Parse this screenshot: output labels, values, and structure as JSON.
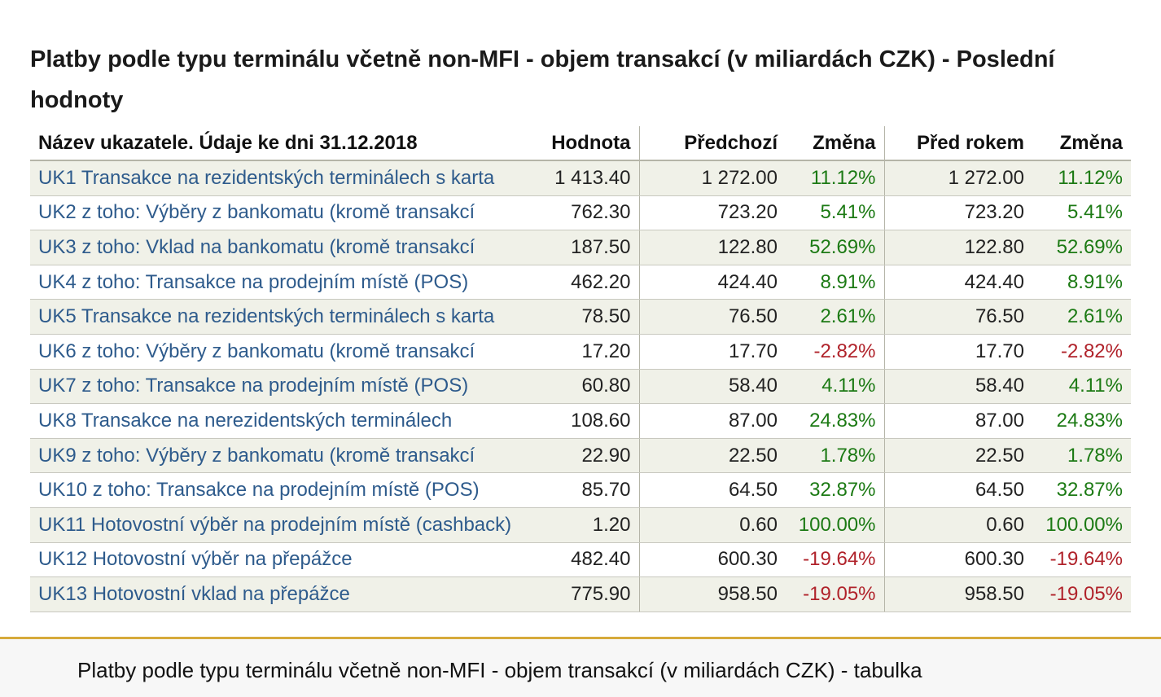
{
  "title": "Platby podle typu terminálu včetně non-MFI - objem transakcí (v miliardách CZK) - Poslední hodnoty",
  "table": {
    "headers": {
      "name": "Název ukazatele. Údaje ke dni 31.12.2018",
      "value": "Hodnota",
      "previous": "Předchozí",
      "change1": "Změna",
      "year_ago": "Před rokem",
      "change2": "Změna"
    },
    "rows": [
      {
        "name": "UK1 Transakce na rezidentských terminálech s karta",
        "value": "1 413.40",
        "previous": "1 272.00",
        "change1": "11.12%",
        "year_ago": "1 272.00",
        "change2": "11.12%"
      },
      {
        "name": "UK2 z toho: Výběry z bankomatu (kromě transakcí",
        "value": "762.30",
        "previous": "723.20",
        "change1": "5.41%",
        "year_ago": "723.20",
        "change2": "5.41%"
      },
      {
        "name": "UK3 z toho: Vklad na bankomatu (kromě transakcí",
        "value": "187.50",
        "previous": "122.80",
        "change1": "52.69%",
        "year_ago": "122.80",
        "change2": "52.69%"
      },
      {
        "name": "UK4 z toho: Transakce na prodejním místě (POS)",
        "value": "462.20",
        "previous": "424.40",
        "change1": "8.91%",
        "year_ago": "424.40",
        "change2": "8.91%"
      },
      {
        "name": "UK5 Transakce na rezidentských terminálech s karta",
        "value": "78.50",
        "previous": "76.50",
        "change1": "2.61%",
        "year_ago": "76.50",
        "change2": "2.61%"
      },
      {
        "name": "UK6 z toho: Výběry z bankomatu (kromě transakcí",
        "value": "17.20",
        "previous": "17.70",
        "change1": "-2.82%",
        "year_ago": "17.70",
        "change2": "-2.82%"
      },
      {
        "name": "UK7 z toho: Transakce na prodejním místě (POS)",
        "value": "60.80",
        "previous": "58.40",
        "change1": "4.11%",
        "year_ago": "58.40",
        "change2": "4.11%"
      },
      {
        "name": "UK8 Transakce na nerezidentských terminálech",
        "value": "108.60",
        "previous": "87.00",
        "change1": "24.83%",
        "year_ago": "87.00",
        "change2": "24.83%"
      },
      {
        "name": "UK9 z toho: Výběry z bankomatu (kromě transakcí",
        "value": "22.90",
        "previous": "22.50",
        "change1": "1.78%",
        "year_ago": "22.50",
        "change2": "1.78%"
      },
      {
        "name": "UK10 z toho: Transakce na prodejním místě (POS)",
        "value": "85.70",
        "previous": "64.50",
        "change1": "32.87%",
        "year_ago": "64.50",
        "change2": "32.87%"
      },
      {
        "name": "UK11 Hotovostní výběr na prodejním místě (cashback)",
        "value": "1.20",
        "previous": "0.60",
        "change1": "100.00%",
        "year_ago": "0.60",
        "change2": "100.00%"
      },
      {
        "name": "UK12 Hotovostní výběr na přepážce",
        "value": "482.40",
        "previous": "600.30",
        "change1": "-19.64%",
        "year_ago": "600.30",
        "change2": "-19.64%"
      },
      {
        "name": "UK13 Hotovostní vklad na přepážce",
        "value": "775.90",
        "previous": "958.50",
        "change1": "-19.05%",
        "year_ago": "958.50",
        "change2": "-19.05%"
      }
    ]
  },
  "caption": "Platby podle typu terminálu včetně non-MFI - objem transakcí (v miliardách CZK) - tabulka",
  "colors": {
    "positive": "#1c7a14",
    "negative": "#b0222a",
    "link": "#2e5b8c",
    "divider": "#d6aa3b"
  }
}
